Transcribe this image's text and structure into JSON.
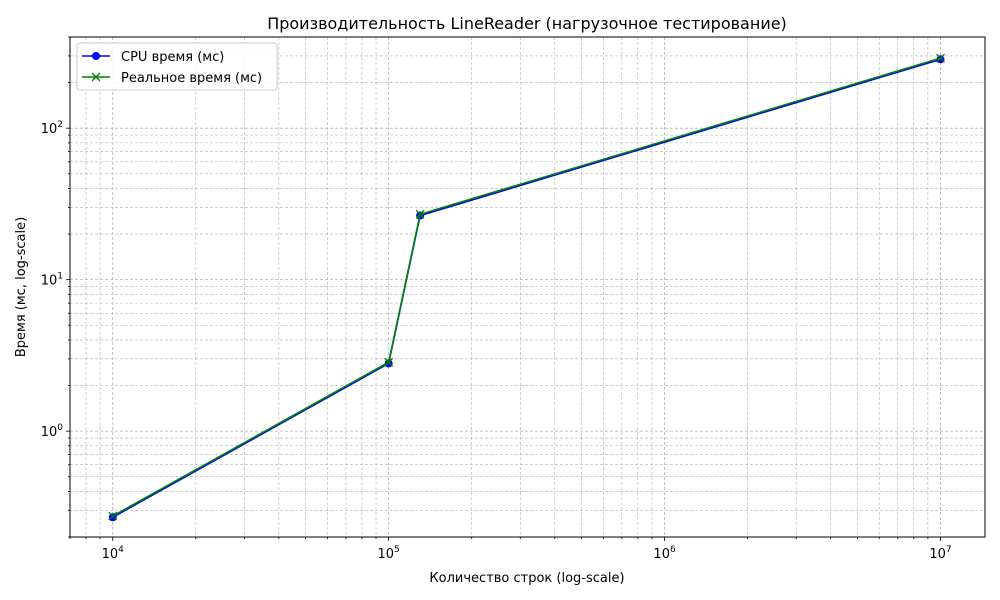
{
  "chart_data": {
    "type": "line",
    "title": "Производительность LineReader (нагрузочное тестирование)",
    "xlabel": "Количество строк (log-scale)",
    "ylabel": "Время (мс, log-scale)",
    "xscale": "log",
    "yscale": "log",
    "xlim": [
      7000,
      14500000
    ],
    "ylim": [
      0.2,
      400
    ],
    "grid": true,
    "legend": "top-left",
    "x": [
      10000,
      100000,
      130000,
      10000000
    ],
    "series": [
      {
        "name": "CPU время (мс)",
        "marker": "circle",
        "color": "#0000ff",
        "values": [
          0.27,
          2.8,
          26.5,
          285
        ]
      },
      {
        "name": "Реальное время (мс)",
        "marker": "x",
        "color": "#008000",
        "values": [
          0.275,
          2.85,
          27.0,
          290
        ]
      }
    ],
    "xticks": [
      {
        "value": 10000,
        "base": "10",
        "exp": "4"
      },
      {
        "value": 100000,
        "base": "10",
        "exp": "5"
      },
      {
        "value": 1000000,
        "base": "10",
        "exp": "6"
      },
      {
        "value": 10000000,
        "base": "10",
        "exp": "7"
      }
    ],
    "yticks": [
      {
        "value": 1,
        "base": "10",
        "exp": "0"
      },
      {
        "value": 10,
        "base": "10",
        "exp": "1"
      },
      {
        "value": 100,
        "base": "10",
        "exp": "2"
      }
    ]
  }
}
